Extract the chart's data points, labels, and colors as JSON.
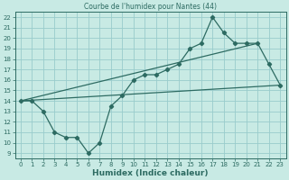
{
  "title": "Courbe de l'humidex pour Nantes (44)",
  "xlabel": "Humidex (Indice chaleur)",
  "bg_color": "#c8eae4",
  "grid_color": "#99cccc",
  "line_color": "#2d6b62",
  "text_color": "#2d6b62",
  "xlim": [
    -0.5,
    23.5
  ],
  "ylim": [
    8.5,
    22.5
  ],
  "xticks": [
    0,
    1,
    2,
    3,
    4,
    5,
    6,
    7,
    8,
    9,
    10,
    11,
    12,
    13,
    14,
    15,
    16,
    17,
    18,
    19,
    20,
    21,
    22,
    23
  ],
  "yticks": [
    9,
    10,
    11,
    12,
    13,
    14,
    15,
    16,
    17,
    18,
    19,
    20,
    21,
    22
  ],
  "main_line_x": [
    0,
    1,
    2,
    3,
    4,
    5,
    6,
    7,
    8,
    9,
    10,
    11,
    12,
    13,
    14,
    15,
    16,
    17,
    18,
    19,
    20,
    21,
    22,
    23
  ],
  "main_line_y": [
    14.0,
    14.0,
    13.0,
    11.0,
    10.5,
    10.5,
    9.0,
    10.0,
    13.5,
    14.5,
    16.0,
    16.5,
    16.5,
    17.0,
    17.5,
    19.0,
    19.5,
    22.0,
    20.5,
    19.5,
    19.5,
    19.5,
    17.5,
    15.5
  ],
  "upper_line_x": [
    0,
    21
  ],
  "upper_line_y": [
    14.0,
    19.5
  ],
  "lower_line_x": [
    0,
    23
  ],
  "lower_line_y": [
    14.0,
    15.5
  ],
  "title_fontsize": 5.5,
  "xlabel_fontsize": 6.5,
  "tick_fontsize": 5
}
